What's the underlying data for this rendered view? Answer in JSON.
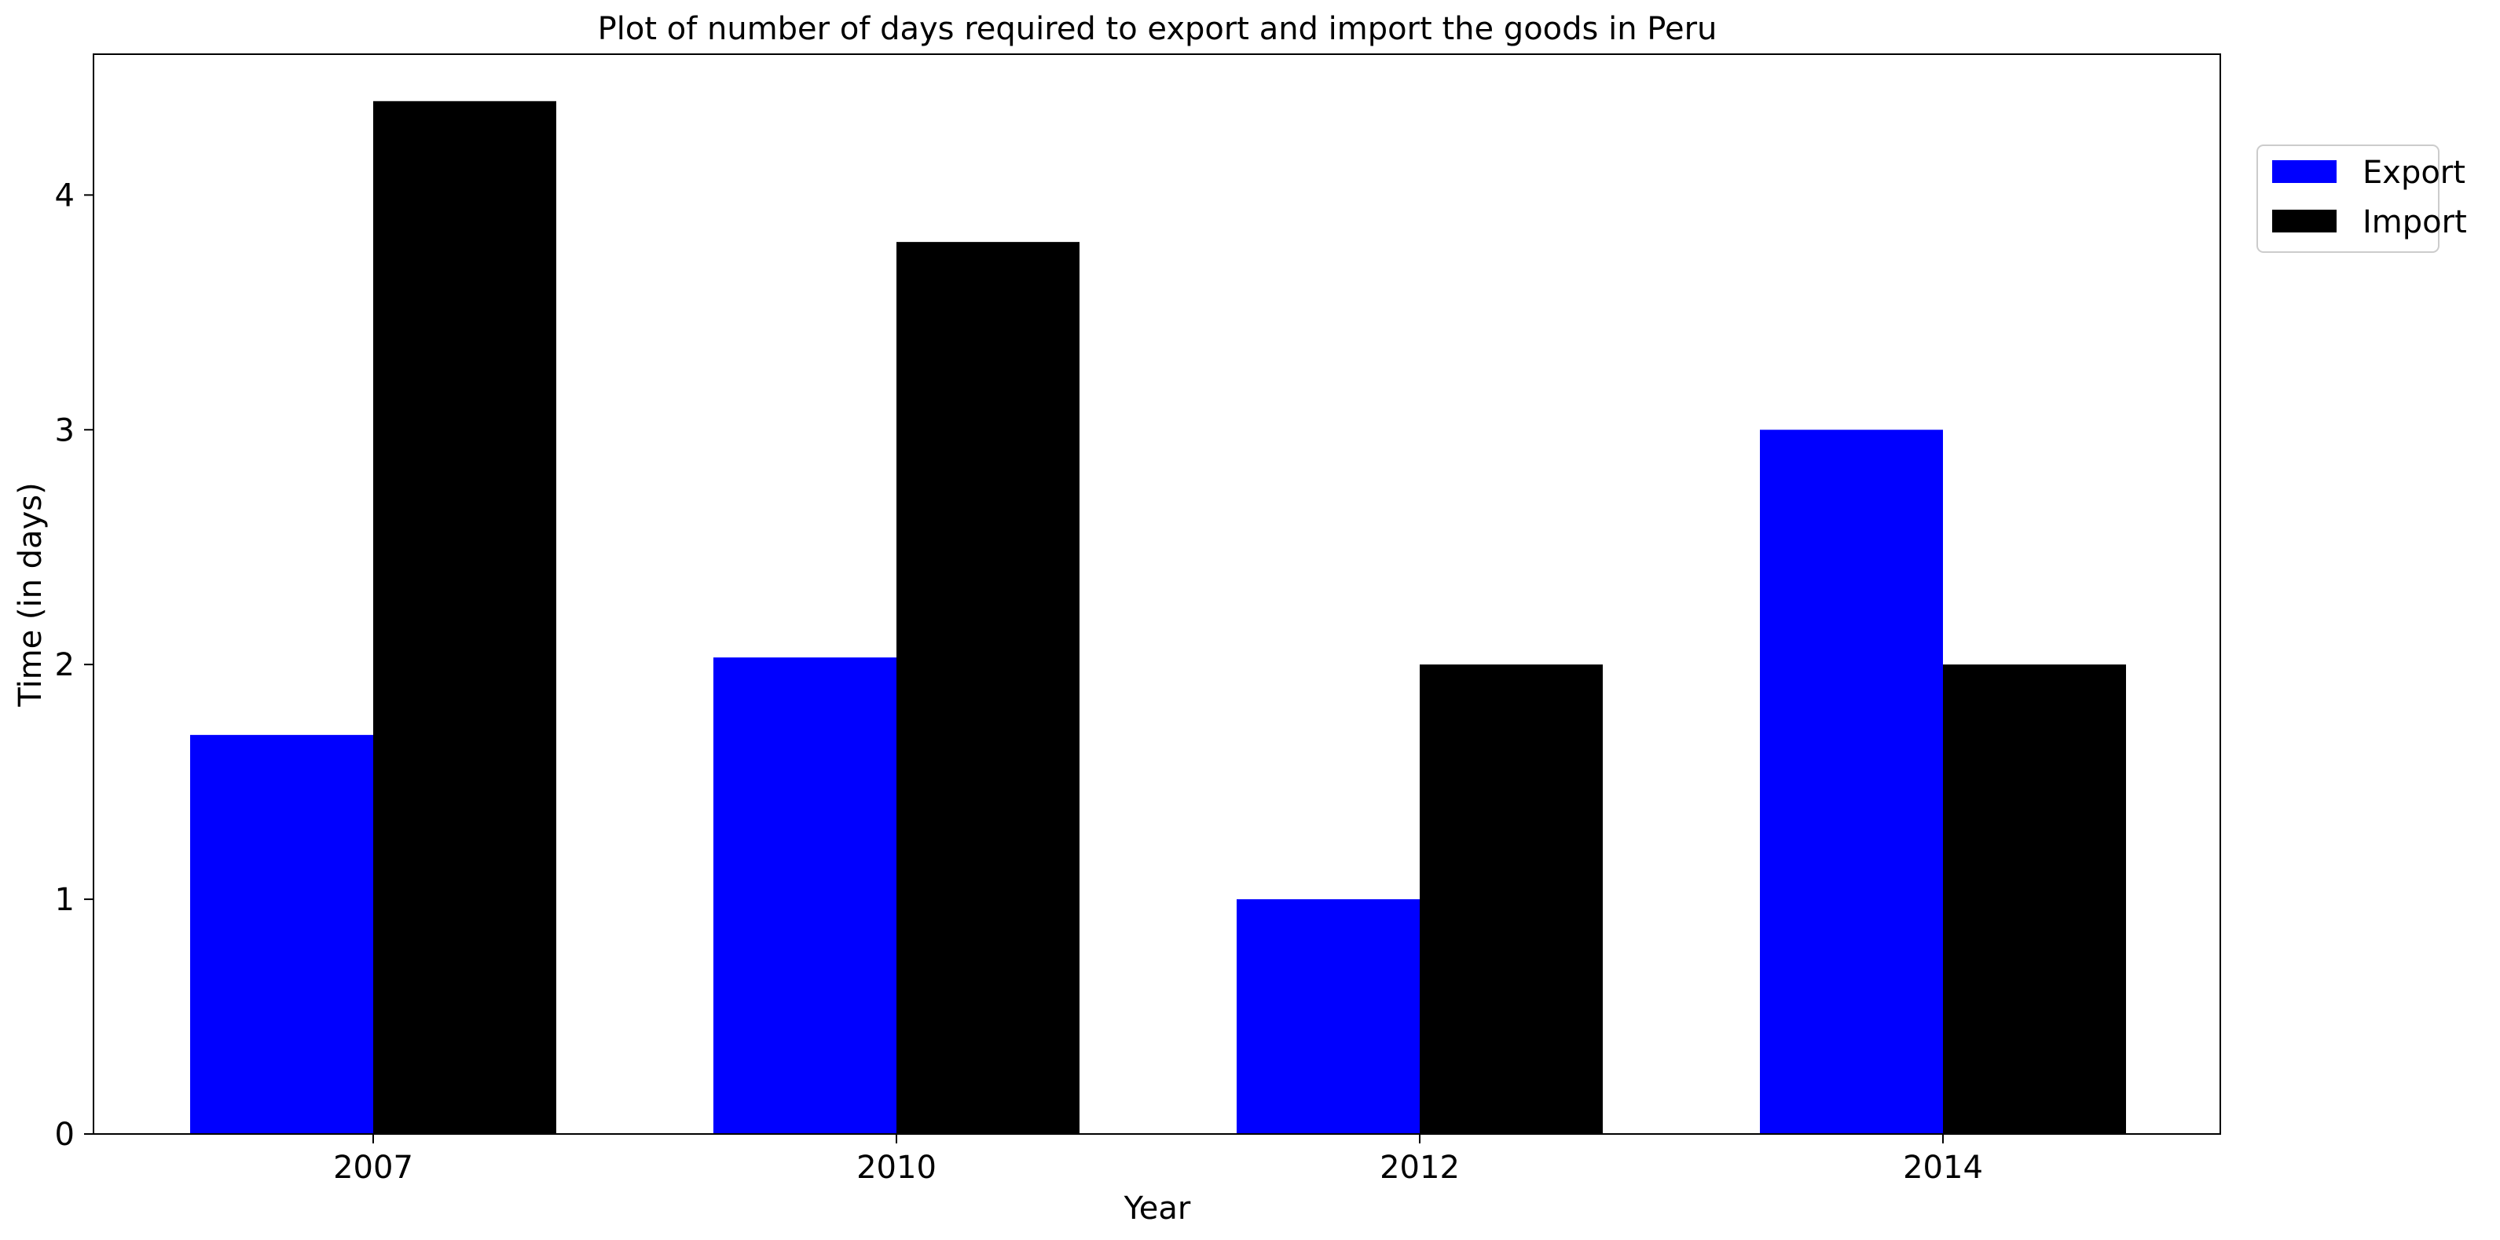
{
  "chart_data": {
    "type": "bar",
    "title": "Plot of number of days required to export and import the goods in Peru",
    "xlabel": "Year",
    "ylabel": "Time (in days)",
    "categories": [
      "2007",
      "2010",
      "2012",
      "2014"
    ],
    "series": [
      {
        "name": "Export",
        "values": [
          1.7,
          2.03,
          1.0,
          3.0
        ],
        "color": "#0000ff"
      },
      {
        "name": "Import",
        "values": [
          4.4,
          3.8,
          2.0,
          2.0
        ],
        "color": "#000000"
      }
    ],
    "ylim": [
      0,
      4.6
    ],
    "yticks": [
      "0",
      "1",
      "2",
      "3",
      "4"
    ],
    "grid": false,
    "legend_position": "outside-top-right"
  }
}
